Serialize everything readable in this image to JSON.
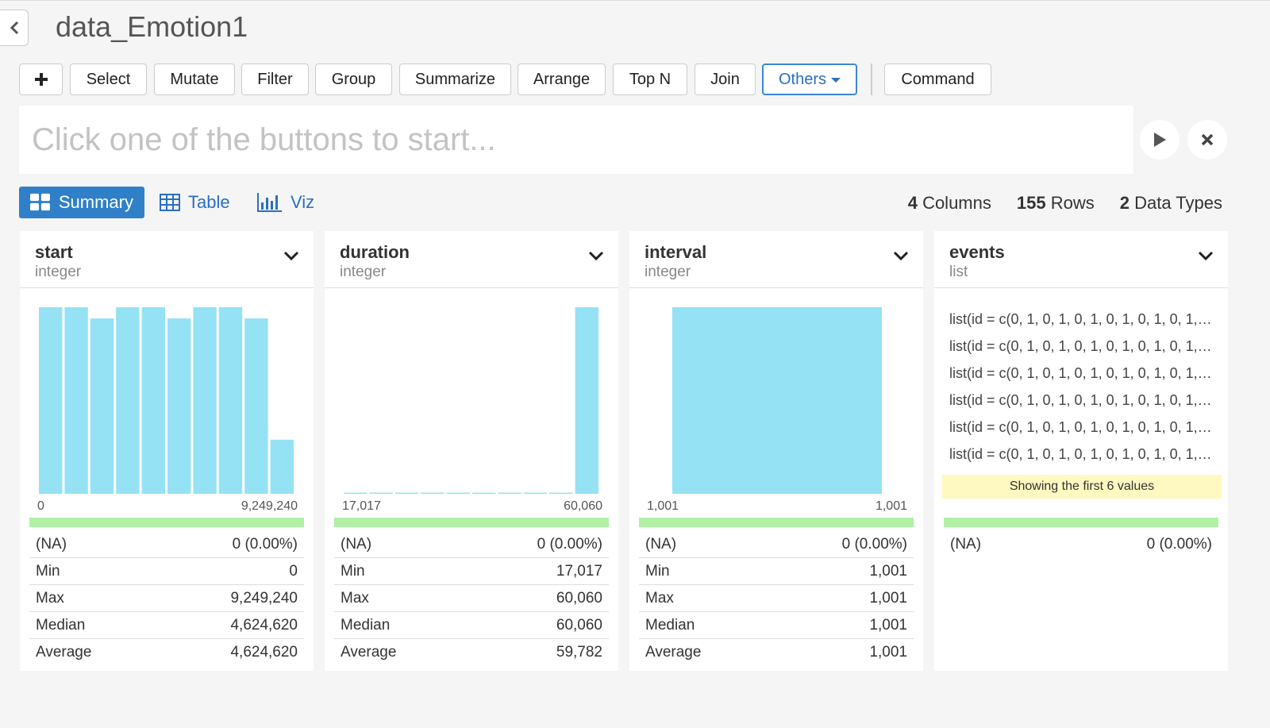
{
  "header": {
    "title": "data_Emotion1"
  },
  "toolbar": {
    "buttons": [
      "+",
      "Select",
      "Mutate",
      "Filter",
      "Group",
      "Summarize",
      "Arrange",
      "Top N",
      "Join",
      "Others",
      "Command"
    ]
  },
  "command": {
    "placeholder": "Click one of the buttons to start..."
  },
  "views": {
    "summary": "Summary",
    "table": "Table",
    "viz": "Viz"
  },
  "stats": {
    "columns_value": "4",
    "columns_label": "Columns",
    "rows_value": "155",
    "rows_label": "Rows",
    "types_value": "2",
    "types_label": "Data Types"
  },
  "colors": {
    "bar": "#95e2f5",
    "accent": "#2f80c8",
    "completeness": "#b2f0a6",
    "note": "#fdf9c0"
  },
  "columns": [
    {
      "name": "start",
      "type": "integer",
      "axis_min": "0",
      "axis_max": "9,249,240",
      "histogram": [
        1,
        1,
        0.94,
        1,
        1,
        0.94,
        1,
        1,
        0.94,
        0.29
      ],
      "stats": [
        {
          "label": "(NA)",
          "value": "0 (0.00%)"
        },
        {
          "label": "Min",
          "value": "0"
        },
        {
          "label": "Max",
          "value": "9,249,240"
        },
        {
          "label": "Median",
          "value": "4,624,620"
        },
        {
          "label": "Average",
          "value": "4,624,620"
        }
      ]
    },
    {
      "name": "duration",
      "type": "integer",
      "axis_min": "17,017",
      "axis_max": "60,060",
      "histogram": [
        0.006,
        0.006,
        0.006,
        0.006,
        0.006,
        0.006,
        0.006,
        0.006,
        0.006,
        1
      ],
      "stats": [
        {
          "label": "(NA)",
          "value": "0 (0.00%)"
        },
        {
          "label": "Min",
          "value": "17,017"
        },
        {
          "label": "Max",
          "value": "60,060"
        },
        {
          "label": "Median",
          "value": "60,060"
        },
        {
          "label": "Average",
          "value": "59,782"
        }
      ]
    },
    {
      "name": "interval",
      "type": "integer",
      "axis_min": "1,001",
      "axis_max": "1,001",
      "histogram": [
        1
      ],
      "stats": [
        {
          "label": "(NA)",
          "value": "0 (0.00%)"
        },
        {
          "label": "Min",
          "value": "1,001"
        },
        {
          "label": "Max",
          "value": "1,001"
        },
        {
          "label": "Median",
          "value": "1,001"
        },
        {
          "label": "Average",
          "value": "1,001"
        }
      ]
    },
    {
      "name": "events",
      "type": "list",
      "values": [
        "list(id = c(0, 1, 0, 1, 0, 1, 0, 1, 0, 1, 0, 1,…",
        "list(id = c(0, 1, 0, 1, 0, 1, 0, 1, 0, 1, 0, 1,…",
        "list(id = c(0, 1, 0, 1, 0, 1, 0, 1, 0, 1, 0, 1,…",
        "list(id = c(0, 1, 0, 1, 0, 1, 0, 1, 0, 1, 0, 1,…",
        "list(id = c(0, 1, 0, 1, 0, 1, 0, 1, 0, 1, 0, 1,…",
        "list(id = c(0, 1, 0, 1, 0, 1, 0, 1, 0, 1, 0, 1,…"
      ],
      "note": "Showing the first 6 values",
      "stats": [
        {
          "label": "(NA)",
          "value": "0 (0.00%)"
        }
      ]
    }
  ]
}
